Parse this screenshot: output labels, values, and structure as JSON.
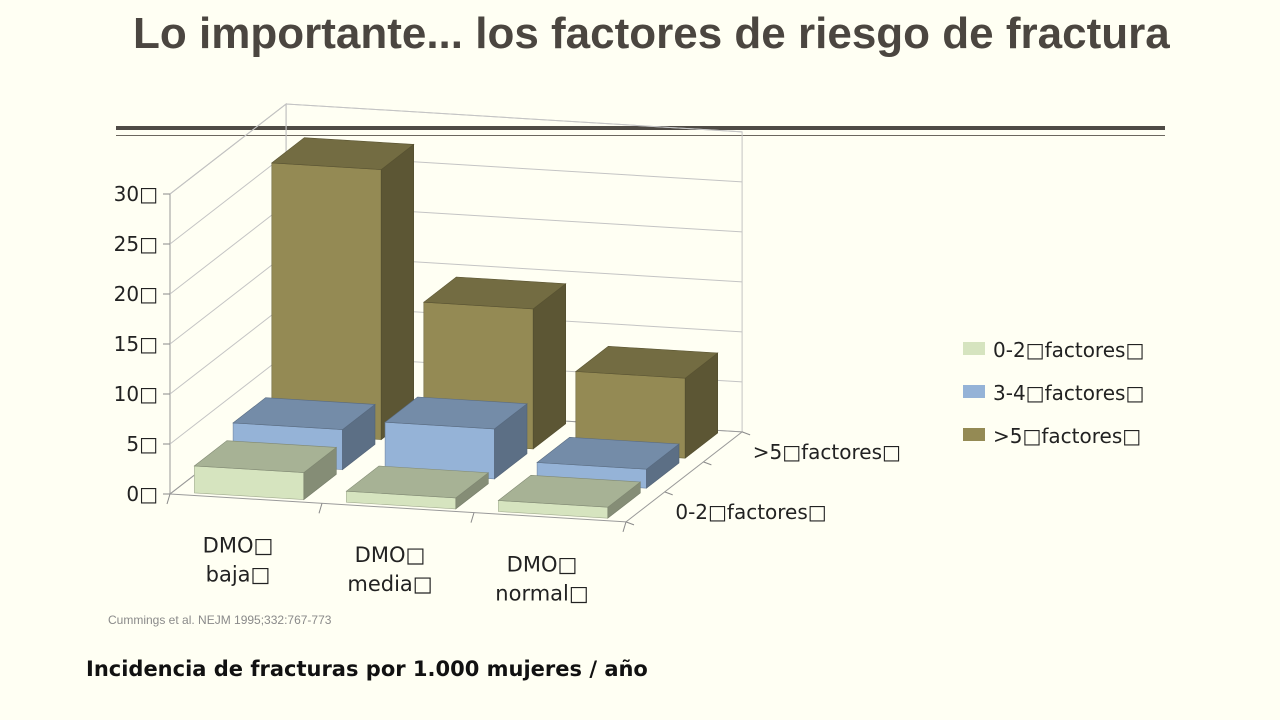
{
  "slide": {
    "title": "Lo importante... los factores de riesgo de fractura",
    "source": "Cummings et al. NEJM 1995;332:767-773",
    "caption": "Incidencia de fracturas por 1.000 mujeres / año"
  },
  "chart_data": {
    "type": "bar",
    "subtype": "3d-column",
    "categories": [
      "DMO□ baja□",
      "DMO□ media□",
      "DMO□ normal□"
    ],
    "depth_labels": [
      ">5□factores□",
      "0-2□factores□"
    ],
    "series": [
      {
        "name": "0-2□factores□",
        "values": [
          2.7,
          1.1,
          1.1
        ],
        "color": "#d6e4bf"
      },
      {
        "name": "3-4□factores□",
        "values": [
          4.0,
          5.0,
          1.9
        ],
        "color": "#95b3d7"
      },
      {
        "name": ">5□factores□",
        "values": [
          27.0,
          14.0,
          8.0
        ],
        "color": "#948a54"
      }
    ],
    "ylim": [
      0,
      30
    ],
    "yticks": [
      "0□",
      "5□",
      "10□",
      "15□",
      "20□",
      "25□",
      "30□"
    ],
    "grid": true,
    "legend": "right"
  }
}
